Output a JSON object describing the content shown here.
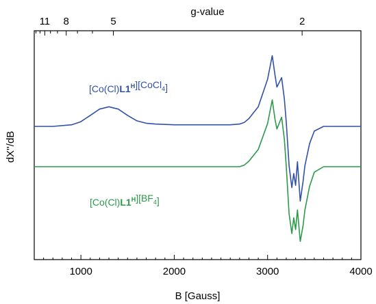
{
  "chart_data": {
    "type": "line",
    "xlabel": "B [Gauss]",
    "ylabel": "dX''/dB",
    "top_axis_label": "g-value",
    "xlim": [
      500,
      4000
    ],
    "xticks": [
      1000,
      2000,
      3000,
      4000
    ],
    "top_ticks": [
      {
        "label": "11",
        "g": 11
      },
      {
        "label": "8",
        "g": 8
      },
      {
        "label": "5",
        "g": 5
      },
      {
        "label": "2",
        "g": 2
      }
    ],
    "y_ticks_shown": false,
    "series": [
      {
        "color": "#3050a8",
        "label_parts": [
          {
            "t": "[Co(Cl)",
            "w": "normal"
          },
          {
            "t": "L1",
            "w": "bold"
          },
          {
            "t": "H",
            "w": "bold",
            "sup": true
          },
          {
            "t": "][CoCl",
            "w": "normal"
          },
          {
            "t": "4",
            "w": "normal",
            "sub": true
          },
          {
            "t": "]",
            "w": "normal"
          }
        ],
        "x": [
          500,
          700,
          900,
          1000,
          1100,
          1200,
          1300,
          1400,
          1500,
          1600,
          1700,
          1800,
          2000,
          2200,
          2400,
          2600,
          2700,
          2750,
          2800,
          2900,
          3000,
          3050,
          3080,
          3100,
          3150,
          3180,
          3200,
          3230,
          3260,
          3280,
          3300,
          3320,
          3350,
          3380,
          3400,
          3450,
          3500,
          3600,
          3700,
          3800,
          4000
        ],
        "y": [
          0.0,
          0.0,
          0.02,
          0.06,
          0.14,
          0.22,
          0.25,
          0.22,
          0.14,
          0.07,
          0.04,
          0.03,
          0.02,
          0.02,
          0.02,
          0.02,
          0.03,
          0.05,
          0.1,
          0.25,
          0.6,
          0.9,
          0.65,
          0.5,
          0.62,
          0.35,
          0.05,
          -0.5,
          -0.78,
          -0.6,
          -0.75,
          -0.45,
          -0.95,
          -0.7,
          -0.5,
          -0.22,
          -0.06,
          0.0,
          0.0,
          0.0,
          0.0
        ]
      },
      {
        "color": "#2a9a4a",
        "label_parts": [
          {
            "t": "[Co(Cl)",
            "w": "normal"
          },
          {
            "t": "L1",
            "w": "bold"
          },
          {
            "t": "H",
            "w": "bold",
            "sup": true
          },
          {
            "t": "][BF",
            "w": "normal"
          },
          {
            "t": "4",
            "w": "normal",
            "sub": true
          },
          {
            "t": "]",
            "w": "normal"
          }
        ],
        "x": [
          500,
          1000,
          1500,
          2000,
          2500,
          2700,
          2750,
          2800,
          2900,
          3000,
          3050,
          3080,
          3100,
          3150,
          3180,
          3200,
          3230,
          3260,
          3280,
          3300,
          3320,
          3350,
          3380,
          3400,
          3450,
          3500,
          3600,
          3700,
          3800,
          4000
        ],
        "y": [
          0.0,
          0.0,
          0.0,
          0.0,
          0.0,
          0.0,
          0.02,
          0.07,
          0.22,
          0.55,
          0.85,
          0.6,
          0.48,
          0.63,
          0.35,
          0.0,
          -0.6,
          -0.85,
          -0.65,
          -0.8,
          -0.55,
          -0.95,
          -0.75,
          -0.55,
          -0.25,
          -0.07,
          0.0,
          0.0,
          0.0,
          0.0
        ]
      }
    ]
  }
}
